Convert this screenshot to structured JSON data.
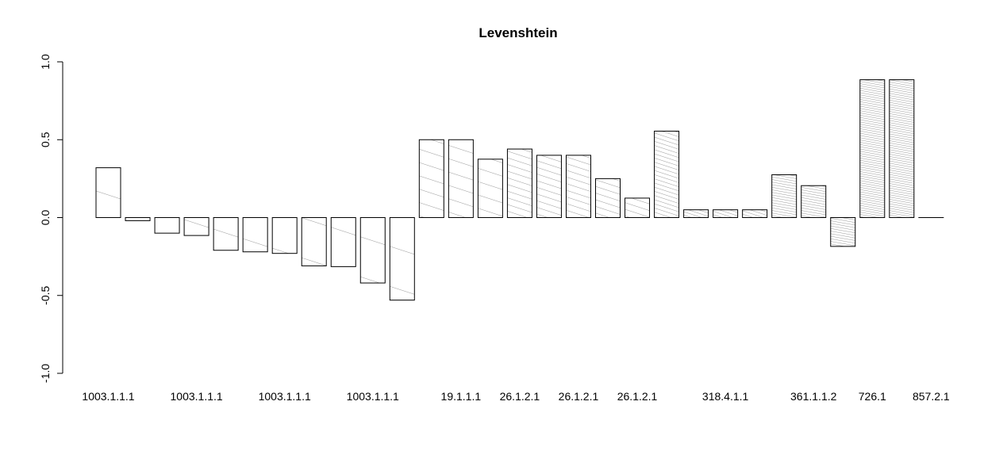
{
  "chart_data": {
    "type": "bar",
    "title": "Levenshtein",
    "xlabel": "",
    "ylabel": "",
    "ylim": [
      -1.0,
      1.0
    ],
    "yticks": [
      "-1.0",
      "-0.5",
      "0.0",
      "0.5",
      "1.0"
    ],
    "ytick_values": [
      -1.0,
      -0.5,
      0.0,
      0.5,
      1.0
    ],
    "grid": false,
    "legend": "none",
    "categories": [
      "1003.1.1.1",
      "",
      "",
      "1003.1.1.1",
      "",
      "",
      "1003.1.1.1",
      "",
      "",
      "1003.1.1.1",
      "",
      "",
      "19.1.1.1",
      "",
      "26.1.2.1",
      "",
      "26.1.2.1",
      "",
      "26.1.2.1",
      "",
      "",
      "318.4.1.1",
      "",
      "",
      "361.1.1.2",
      "",
      "726.1",
      "",
      "857.2.1"
    ],
    "values": [
      0.32,
      -0.02,
      -0.1,
      -0.115,
      -0.21,
      -0.22,
      -0.23,
      -0.31,
      -0.315,
      -0.42,
      -0.53,
      0.5,
      0.5,
      0.375,
      0.44,
      0.4,
      0.4,
      0.25,
      0.125,
      0.555,
      0.05,
      0.05,
      0.05,
      0.275,
      0.205,
      -0.185,
      0.885,
      0.885,
      0.0
    ],
    "hatch_density": [
      1,
      1,
      1,
      1,
      1,
      1,
      1,
      1,
      1,
      1,
      1,
      2,
      2,
      2,
      3,
      3,
      3,
      3,
      3,
      4,
      5,
      5,
      5,
      6,
      6,
      6,
      7,
      7,
      7
    ]
  }
}
